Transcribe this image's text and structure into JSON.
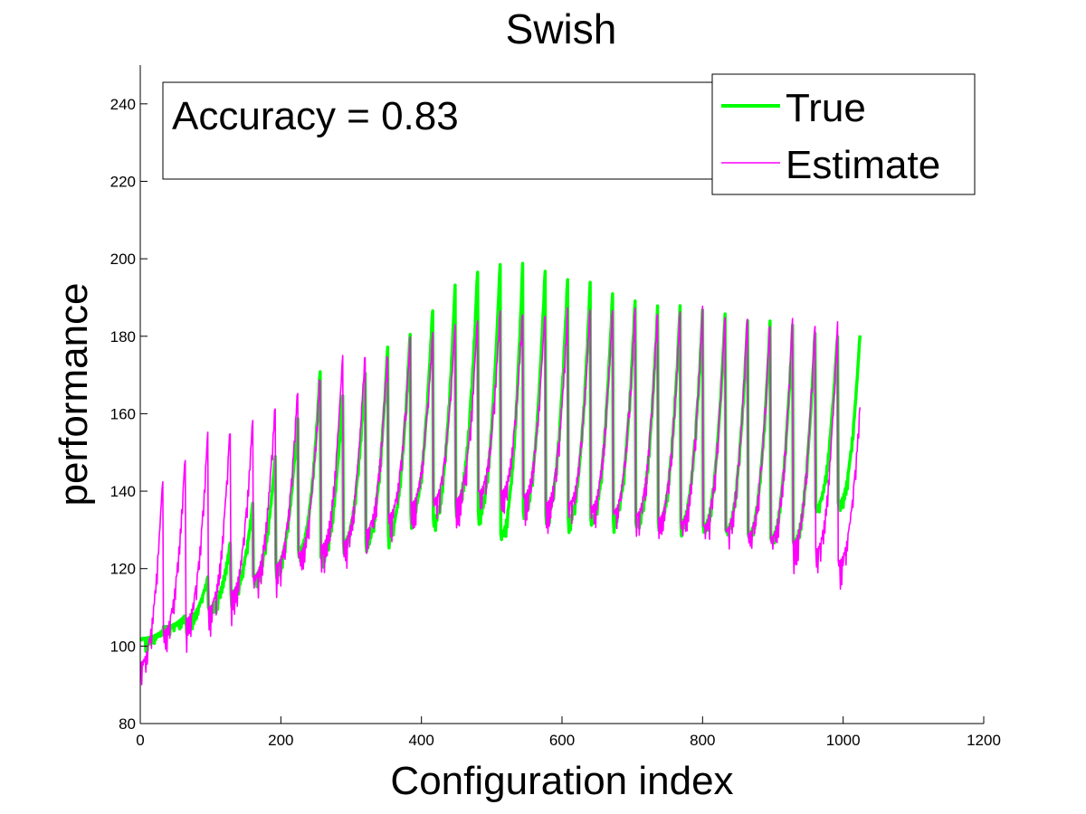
{
  "chart_data": {
    "type": "line",
    "title": "Swish",
    "xlabel": "Configuration index",
    "ylabel": "performance",
    "xlim": [
      0,
      1200
    ],
    "ylim": [
      80,
      250
    ],
    "x_ticks": [
      0,
      200,
      400,
      600,
      800,
      1000,
      1200
    ],
    "y_ticks": [
      80,
      100,
      120,
      140,
      160,
      180,
      200,
      220,
      240
    ],
    "grid": false,
    "legend_position": "top-right",
    "annotation": "Accuracy = 0.83",
    "series": [
      {
        "name": "True",
        "color": "#00ff00",
        "line_width": "thick",
        "cycle_length": 32,
        "x_start": 1,
        "x_end": 1024,
        "cycle_min": [
          102,
          105,
          107,
          110,
          114,
          118,
          121,
          125,
          123,
          127,
          127,
          129,
          134,
          133,
          137,
          135,
          129,
          135,
          134,
          133,
          133,
          133,
          132,
          132,
          132,
          131,
          130,
          129,
          128,
          127,
          136,
          137
        ],
        "cycle_max": [
          104,
          108,
          118,
          127,
          137,
          149,
          160,
          172,
          166,
          172,
          178,
          182,
          188,
          194,
          198,
          200,
          199,
          198,
          196,
          194,
          192,
          190,
          188,
          188,
          187,
          186,
          185,
          184,
          183,
          182,
          181,
          181
        ]
      },
      {
        "name": "Estimate",
        "color": "#ff00ff",
        "line_width": "thin",
        "cycle_length": 32,
        "x_start": 1,
        "x_end": 1024,
        "cycle_min": [
          96,
          104,
          107,
          110,
          114,
          118,
          121,
          124,
          126,
          127,
          130,
          134,
          137,
          138,
          138,
          140,
          140,
          139,
          137,
          137,
          136,
          135,
          134,
          133,
          132,
          131,
          130,
          129,
          128,
          127,
          125,
          122
        ],
        "cycle_max": [
          144,
          150,
          156,
          158,
          160,
          164,
          168,
          172,
          176,
          178,
          178,
          180,
          182,
          184,
          186,
          188,
          188,
          188,
          188,
          189,
          189,
          189,
          189,
          188,
          188,
          187,
          187,
          186,
          186,
          185,
          184,
          163
        ]
      }
    ]
  }
}
